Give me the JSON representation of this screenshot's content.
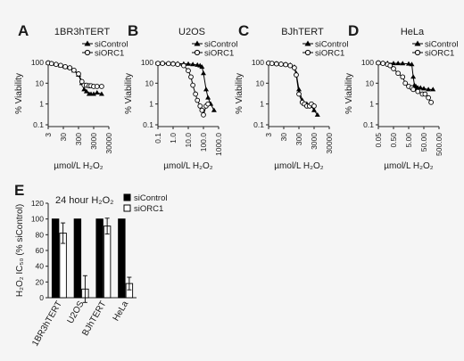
{
  "figure": {
    "panels": [
      {
        "letter": "A",
        "title": "1BR3hTERT",
        "xlabel": "µmol/L H₂O₂",
        "ylabel": "% Viability",
        "xticks": [
          "3",
          "30",
          "300",
          "3000",
          "30000"
        ],
        "legend": [
          "siControl",
          "siORC1"
        ]
      },
      {
        "letter": "B",
        "title": "U2OS",
        "xlabel": "µmol/L H₂O₂",
        "ylabel": "% Viability",
        "xticks": [
          "0.1",
          "1.0",
          "10.0",
          "100.0",
          "1000.0"
        ],
        "legend": [
          "siControl",
          "siORC1"
        ]
      },
      {
        "letter": "C",
        "title": "BJhTERT",
        "xlabel": "µmol/L H₂O₂",
        "ylabel": "% Viability",
        "xticks": [
          "3",
          "30",
          "300",
          "3000",
          "30000"
        ],
        "legend": [
          "siControl",
          "siORC1"
        ]
      },
      {
        "letter": "D",
        "title": "HeLa",
        "xlabel": "µmol/L H₂O₂",
        "ylabel": "% Viability",
        "xticks": [
          "0.05",
          "0.50",
          "5.00",
          "50.00",
          "500.00"
        ],
        "legend": [
          "siControl",
          "siORC1"
        ]
      }
    ],
    "yticks": [
      "0.1",
      "1",
      "10",
      "100"
    ],
    "panelE": {
      "letter": "E",
      "annotation": "24 hour H₂O₂",
      "ylabel": "H₂O₂ IC₅₀ (% siControl)",
      "yticks": [
        "0",
        "20",
        "40",
        "60",
        "80",
        "100",
        "120"
      ],
      "categories": [
        "1BR3hTERT",
        "U2OS",
        "BJhTERT",
        "HeLa"
      ],
      "legend": [
        "siControl",
        "siORC1"
      ]
    }
  },
  "chart_data": [
    {
      "type": "line",
      "title": "1BR3hTERT",
      "xlabel": "µmol/L H₂O₂",
      "ylabel": "% Viability",
      "xscale": "log",
      "yscale": "log",
      "xlim": [
        3,
        30000
      ],
      "ylim": [
        0.1,
        100
      ],
      "legend": "top-right",
      "series": [
        {
          "name": "siControl",
          "marker": "filled-triangle",
          "color": "#000000",
          "x": [
            3,
            5,
            10,
            20,
            40,
            80,
            150,
            300,
            500,
            700,
            1000,
            1500,
            2000,
            3000,
            5000,
            10000
          ],
          "y": [
            95,
            90,
            82,
            70,
            60,
            55,
            40,
            25,
            10,
            5,
            4,
            3,
            3,
            3,
            3.5,
            3
          ]
        },
        {
          "name": "siORC1",
          "marker": "open-circle",
          "color": "#000000",
          "x": [
            3,
            5,
            10,
            20,
            40,
            80,
            150,
            300,
            500,
            700,
            1000,
            1500,
            2000,
            3000,
            5000,
            10000
          ],
          "y": [
            95,
            88,
            80,
            72,
            62,
            55,
            42,
            28,
            12,
            8,
            8,
            7.5,
            7.5,
            7,
            7,
            7
          ]
        }
      ]
    },
    {
      "type": "line",
      "title": "U2OS",
      "xlabel": "µmol/L H₂O₂",
      "ylabel": "% Viability",
      "xscale": "log",
      "yscale": "log",
      "xlim": [
        0.1,
        1000
      ],
      "ylim": [
        0.1,
        100
      ],
      "legend": "top-right",
      "series": [
        {
          "name": "siControl",
          "marker": "filled-triangle",
          "color": "#000000",
          "x": [
            0.1,
            0.2,
            0.5,
            1,
            2,
            5,
            10,
            20,
            40,
            60,
            80,
            100,
            150,
            200,
            300,
            500
          ],
          "y": [
            90,
            92,
            90,
            88,
            87,
            85,
            84,
            80,
            75,
            70,
            60,
            30,
            5,
            2,
            1,
            0.5
          ]
        },
        {
          "name": "siORC1",
          "marker": "open-circle",
          "color": "#000000",
          "x": [
            0.1,
            0.2,
            0.5,
            1,
            2,
            5,
            10,
            15,
            20,
            30,
            40,
            60,
            80,
            100,
            150,
            200
          ],
          "y": [
            90,
            90,
            88,
            85,
            80,
            70,
            40,
            20,
            8,
            3,
            1.5,
            0.8,
            0.5,
            0.3,
            0.8,
            1
          ]
        }
      ]
    },
    {
      "type": "line",
      "title": "BJhTERT",
      "xlabel": "µmol/L H₂O₂",
      "ylabel": "% Viability",
      "xscale": "log",
      "yscale": "log",
      "xlim": [
        3,
        30000
      ],
      "ylim": [
        0.1,
        100
      ],
      "legend": "top-right",
      "series": [
        {
          "name": "siControl",
          "marker": "filled-triangle",
          "color": "#000000",
          "x": [
            3,
            5,
            10,
            20,
            40,
            80,
            150,
            200,
            300,
            500,
            700,
            1000,
            1500,
            2000,
            3000,
            5000
          ],
          "y": [
            95,
            90,
            88,
            85,
            80,
            75,
            60,
            30,
            5,
            1.5,
            1,
            1,
            0.8,
            0.8,
            0.5,
            0.3
          ]
        },
        {
          "name": "siORC1",
          "marker": "open-circle",
          "color": "#000000",
          "x": [
            3,
            5,
            10,
            20,
            40,
            80,
            150,
            200,
            300,
            500,
            700,
            1000,
            1500,
            2000,
            3000
          ],
          "y": [
            93,
            90,
            85,
            82,
            78,
            70,
            55,
            25,
            3,
            1.2,
            1,
            0.8,
            0.8,
            1,
            0.8
          ]
        }
      ]
    },
    {
      "type": "line",
      "title": "HeLa",
      "xlabel": "µmol/L H₂O₂",
      "ylabel": "% Viability",
      "xscale": "log",
      "yscale": "log",
      "xlim": [
        0.05,
        500
      ],
      "ylim": [
        0.1,
        100
      ],
      "legend": "top-right",
      "series": [
        {
          "name": "siControl",
          "marker": "filled-triangle",
          "color": "#000000",
          "x": [
            0.05,
            0.1,
            0.2,
            0.5,
            1,
            2,
            5,
            8,
            10,
            12,
            15,
            20,
            30,
            50,
            100,
            200
          ],
          "y": [
            95,
            93,
            92,
            90,
            90,
            88,
            85,
            80,
            20,
            8,
            7,
            6,
            6,
            5.5,
            5,
            5
          ]
        },
        {
          "name": "siORC1",
          "marker": "open-circle",
          "color": "#000000",
          "x": [
            0.05,
            0.1,
            0.2,
            0.3,
            0.5,
            1,
            2,
            3,
            5,
            8,
            10,
            20,
            40,
            60,
            100,
            150
          ],
          "y": [
            95,
            90,
            80,
            70,
            50,
            30,
            20,
            10,
            7,
            6,
            5,
            4,
            3,
            3,
            2,
            1.2
          ]
        }
      ]
    },
    {
      "type": "bar",
      "title": "",
      "annotation": "24 hour H₂O₂",
      "ylabel": "H₂O₂ IC₅₀ (% siControl)",
      "ylim": [
        0,
        120
      ],
      "legend": "top-right",
      "categories": [
        "1BR3hTERT",
        "U2OS",
        "BJhTERT",
        "HeLa"
      ],
      "series": [
        {
          "name": "siControl",
          "color": "#000000",
          "values": [
            100,
            100,
            100,
            100
          ],
          "errors": [
            0,
            0,
            0,
            0
          ]
        },
        {
          "name": "siORC1",
          "color": "#ffffff",
          "values": [
            82,
            11,
            91,
            18
          ],
          "errors": [
            13,
            17,
            10,
            8
          ]
        }
      ]
    }
  ]
}
